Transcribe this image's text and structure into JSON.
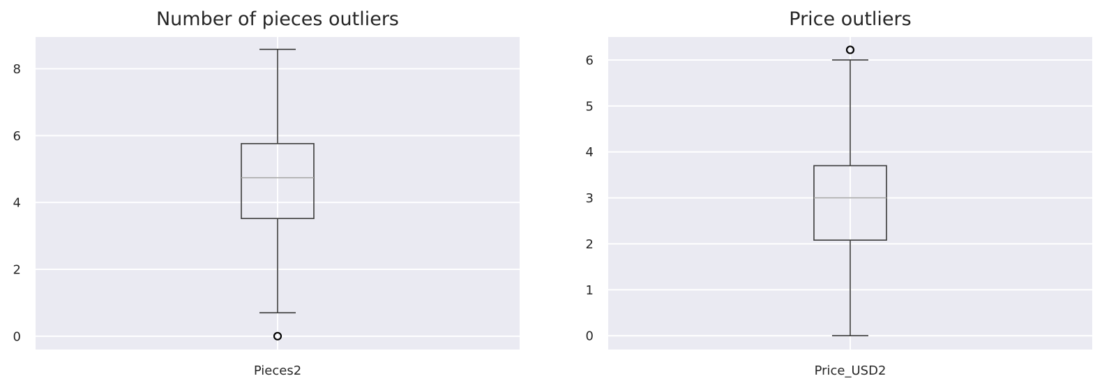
{
  "chart_data": [
    {
      "type": "box",
      "title": "Number of pieces outliers",
      "categories": [
        "Pieces2"
      ],
      "ylim": [
        -0.4,
        8.95
      ],
      "yticks": [
        0,
        2,
        4,
        6,
        8
      ],
      "grid": true,
      "boxes": [
        {
          "label": "Pieces2",
          "whisker_low": 0.7,
          "q1": 3.52,
          "median": 4.74,
          "q3": 5.76,
          "whisker_high": 8.58,
          "fliers": [
            0
          ]
        }
      ]
    },
    {
      "type": "box",
      "title": "Price outliers",
      "categories": [
        "Price_USD2"
      ],
      "ylim": [
        -0.3,
        6.5
      ],
      "yticks": [
        0,
        1,
        2,
        3,
        4,
        5,
        6
      ],
      "grid": true,
      "boxes": [
        {
          "label": "Price_USD2",
          "whisker_low": 0,
          "q1": 2.08,
          "median": 3.0,
          "q3": 3.7,
          "whisker_high": 6.0,
          "fliers": [
            6.22
          ]
        }
      ]
    }
  ]
}
